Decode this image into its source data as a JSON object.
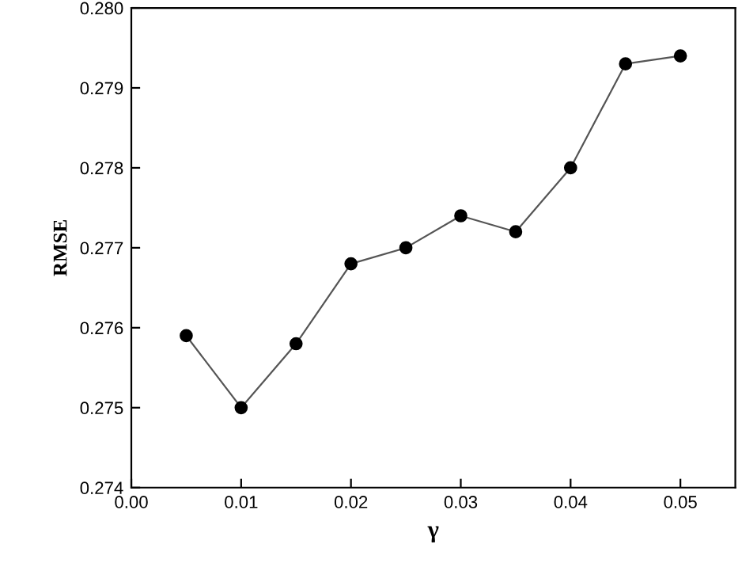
{
  "chart_data": {
    "type": "line",
    "xlabel": "γ",
    "ylabel": "RMSE",
    "x": [
      0.005,
      0.01,
      0.015,
      0.02,
      0.025,
      0.03,
      0.035,
      0.04,
      0.045,
      0.05
    ],
    "series": [
      {
        "color": "#000000",
        "values": [
          0.2759,
          0.275,
          0.2758,
          0.2768,
          0.277,
          0.2774,
          0.2772,
          0.278,
          0.2793,
          0.2794
        ]
      }
    ],
    "xlim": [
      0,
      0.055
    ],
    "ylim": [
      0.274,
      0.28
    ],
    "xticks": [
      {
        "value": 0,
        "label": "0.00"
      },
      {
        "value": 0.01,
        "label": "0.01"
      },
      {
        "value": 0.02,
        "label": "0.02"
      },
      {
        "value": 0.03,
        "label": "0.03"
      },
      {
        "value": 0.04,
        "label": "0.04"
      },
      {
        "value": 0.05,
        "label": "0.05"
      }
    ],
    "yticks": [
      0.274,
      0.275,
      0.276,
      0.277,
      0.278,
      0.279,
      {
        "value": 0.28,
        "label": "0.280"
      }
    ],
    "marker": "circle",
    "line_style": "solid",
    "grid": false,
    "legend": false
  }
}
